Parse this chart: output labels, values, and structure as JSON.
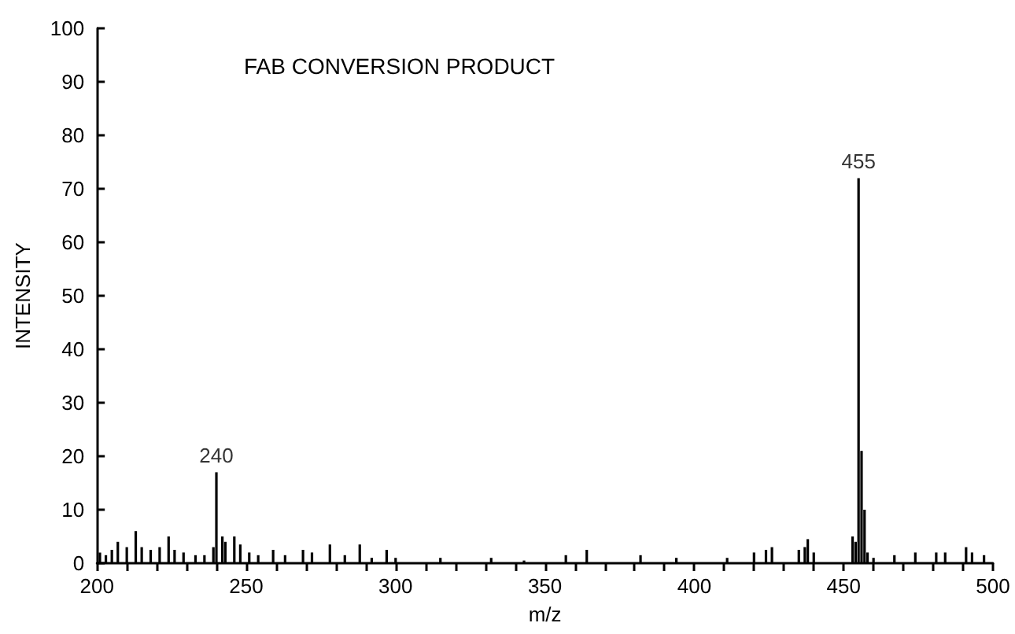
{
  "chart_data": {
    "type": "bar",
    "title": "FAB CONVERSION PRODUCT",
    "xlabel": "m/z",
    "ylabel": "INTENSITY",
    "x": [
      201,
      203,
      205,
      207,
      210,
      213,
      215,
      218,
      221,
      224,
      226,
      229,
      233,
      236,
      239,
      240,
      242,
      243,
      246,
      248,
      251,
      254,
      259,
      263,
      269,
      272,
      278,
      283,
      288,
      292,
      297,
      300,
      315,
      332,
      343,
      357,
      364,
      382,
      394,
      411,
      420,
      424,
      426,
      435,
      437,
      438,
      440,
      453,
      454,
      455,
      456,
      457,
      458,
      460,
      467,
      474,
      481,
      484,
      491,
      493,
      497
    ],
    "values": [
      2,
      1.5,
      2.5,
      4,
      3,
      6,
      3,
      2.5,
      3,
      5,
      2.5,
      2,
      1.5,
      1.5,
      3,
      17,
      5,
      4,
      5,
      3.5,
      2,
      1.5,
      2.5,
      1.5,
      2.5,
      2,
      3.5,
      1.5,
      3.5,
      1,
      2.5,
      1,
      1,
      1,
      0.5,
      1.5,
      2.5,
      1.5,
      1,
      1,
      2,
      2.5,
      3,
      2.5,
      3,
      4.5,
      2,
      5,
      4,
      72,
      21,
      10,
      2,
      1,
      1.5,
      2,
      2,
      2,
      3,
      2,
      1.5
    ],
    "color": "#000000",
    "annotations": [
      {
        "text": "240",
        "x": 240,
        "y": 17
      },
      {
        "text": "455",
        "x": 455,
        "y": 72
      }
    ],
    "xlim": [
      200,
      500
    ],
    "ylim": [
      0,
      100
    ],
    "xticks": [
      200,
      {
        "value": 210,
        "label": null
      },
      {
        "value": 220,
        "label": null
      },
      {
        "value": 230,
        "label": null
      },
      {
        "value": 240,
        "label": null
      },
      250,
      {
        "value": 260,
        "label": null
      },
      {
        "value": 270,
        "label": null
      },
      {
        "value": 280,
        "label": null
      },
      {
        "value": 290,
        "label": null
      },
      300,
      {
        "value": 310,
        "label": null
      },
      {
        "value": 320,
        "label": null
      },
      {
        "value": 330,
        "label": null
      },
      {
        "value": 340,
        "label": null
      },
      350,
      {
        "value": 360,
        "label": null
      },
      {
        "value": 370,
        "label": null
      },
      {
        "value": 380,
        "label": null
      },
      {
        "value": 390,
        "label": null
      },
      400,
      {
        "value": 410,
        "label": null
      },
      {
        "value": 420,
        "label": null
      },
      {
        "value": 430,
        "label": null
      },
      {
        "value": 440,
        "label": null
      },
      450,
      {
        "value": 460,
        "label": null
      },
      {
        "value": 470,
        "label": null
      },
      {
        "value": 480,
        "label": null
      },
      {
        "value": 490,
        "label": null
      },
      500
    ],
    "yticks": [
      0,
      10,
      20,
      30,
      40,
      50,
      60,
      70,
      80,
      90,
      100
    ],
    "grid": false
  }
}
